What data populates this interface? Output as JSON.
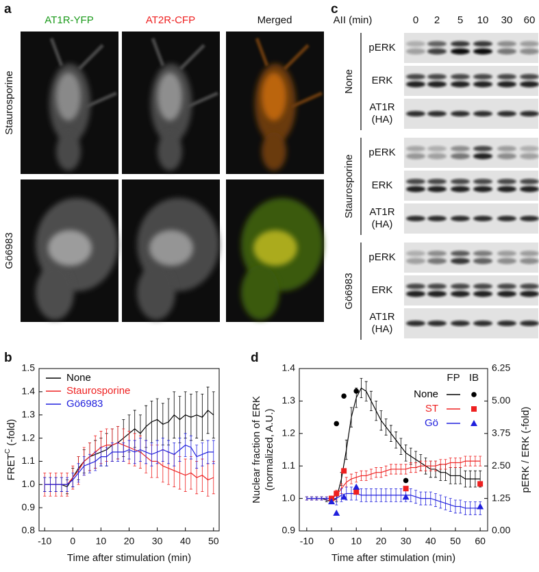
{
  "panel_labels": [
    "a",
    "b",
    "c",
    "d"
  ],
  "images": {
    "columns": [
      "AT1R-YFP",
      "AT2R-CFP",
      "Merged"
    ],
    "rows": [
      "Staurosporine",
      "Gö6983"
    ]
  },
  "blots": {
    "header": "AII (min)",
    "times": [
      0,
      2,
      5,
      10,
      30,
      60
    ],
    "groups": [
      {
        "name": "None",
        "rows": [
          [
            "pERK"
          ],
          [
            "ERK"
          ],
          [
            "AT1R",
            "(HA)"
          ]
        ]
      },
      {
        "name": "Staurosporine",
        "rows": [
          [
            "pERK"
          ],
          [
            "ERK"
          ],
          [
            "AT1R",
            "(HA)"
          ]
        ]
      },
      {
        "name": "Gö6983",
        "rows": [
          [
            "pERK"
          ],
          [
            "ERK"
          ],
          [
            "AT1R",
            "(HA)"
          ]
        ]
      }
    ]
  },
  "chart_data": [
    {
      "type": "line",
      "xlabel": "Time after stimulation (min)",
      "ylabel": {
        "text": "FRET",
        "superscript": "C",
        "suffix": " (-fold)"
      },
      "x": [
        -10,
        -8,
        -6,
        -4,
        -2,
        0,
        2,
        4,
        6,
        8,
        10,
        12,
        14,
        16,
        18,
        20,
        22,
        24,
        26,
        28,
        30,
        32,
        34,
        36,
        38,
        40,
        42,
        44,
        46,
        48,
        50
      ],
      "xlim": [
        -12,
        52
      ],
      "xticks": [
        -10,
        0,
        10,
        20,
        30,
        40,
        50
      ],
      "ylim": [
        0.8,
        1.5
      ],
      "yticks": [
        0.8,
        0.9,
        {
          "value": 1.0,
          "label": "1.0"
        },
        1.1,
        1.2,
        1.3,
        1.4,
        1.5
      ],
      "legend": "upper left",
      "series": [
        {
          "name": "None",
          "color": "#000000",
          "values": [
            1.0,
            1.0,
            1.0,
            1.0,
            0.99,
            1.03,
            1.07,
            1.1,
            1.12,
            1.13,
            1.14,
            1.15,
            1.17,
            1.18,
            1.2,
            1.22,
            1.24,
            1.22,
            1.25,
            1.27,
            1.28,
            1.26,
            1.27,
            1.3,
            1.28,
            1.3,
            1.29,
            1.3,
            1.29,
            1.32,
            1.3
          ],
          "errors": [
            0.03,
            0.03,
            0.03,
            0.03,
            0.03,
            0.04,
            0.05,
            0.05,
            0.06,
            0.06,
            0.06,
            0.07,
            0.07,
            0.07,
            0.08,
            0.08,
            0.08,
            0.08,
            0.09,
            0.09,
            0.09,
            0.09,
            0.1,
            0.1,
            0.1,
            0.1,
            0.1,
            0.1,
            0.1,
            0.1,
            0.1
          ]
        },
        {
          "name": "Staurosporine",
          "color": "#ee2020",
          "values": [
            1.0,
            1.0,
            1.0,
            1.0,
            1.0,
            1.03,
            1.06,
            1.1,
            1.12,
            1.14,
            1.16,
            1.17,
            1.17,
            1.18,
            1.17,
            1.16,
            1.15,
            1.14,
            1.12,
            1.1,
            1.1,
            1.08,
            1.07,
            1.06,
            1.05,
            1.04,
            1.05,
            1.03,
            1.04,
            1.02,
            1.03
          ],
          "errors": [
            0.05,
            0.05,
            0.05,
            0.05,
            0.05,
            0.05,
            0.06,
            0.06,
            0.06,
            0.07,
            0.07,
            0.07,
            0.07,
            0.07,
            0.07,
            0.07,
            0.07,
            0.07,
            0.07,
            0.07,
            0.07,
            0.07,
            0.07,
            0.07,
            0.07,
            0.07,
            0.07,
            0.07,
            0.07,
            0.07,
            0.07
          ]
        },
        {
          "name": "Gö6983",
          "color": "#2020dd",
          "values": [
            1.0,
            1.0,
            1.0,
            1.0,
            1.0,
            1.02,
            1.05,
            1.08,
            1.09,
            1.1,
            1.12,
            1.12,
            1.14,
            1.14,
            1.14,
            1.15,
            1.14,
            1.15,
            1.14,
            1.13,
            1.14,
            1.15,
            1.14,
            1.13,
            1.15,
            1.17,
            1.16,
            1.12,
            1.13,
            1.14,
            1.14
          ],
          "errors": [
            0.03,
            0.03,
            0.03,
            0.03,
            0.03,
            0.03,
            0.04,
            0.04,
            0.04,
            0.04,
            0.04,
            0.04,
            0.04,
            0.04,
            0.04,
            0.04,
            0.05,
            0.05,
            0.05,
            0.05,
            0.05,
            0.05,
            0.05,
            0.05,
            0.05,
            0.05,
            0.05,
            0.05,
            0.05,
            0.05,
            0.05
          ]
        }
      ]
    },
    {
      "type": "line",
      "xlabel": "Time after stimulation (min)",
      "ylabel": [
        "Nuclear fraction of ERK",
        "(normalized, A.U.)"
      ],
      "y2label": "pERK / ERK (-fold)",
      "legend": "upper right",
      "legend_headers": [
        "FP",
        "IB"
      ],
      "x": [
        -10,
        -8,
        -6,
        -4,
        -2,
        0,
        2,
        4,
        6,
        8,
        10,
        12,
        14,
        16,
        18,
        20,
        22,
        24,
        26,
        28,
        30,
        32,
        34,
        36,
        38,
        40,
        42,
        44,
        46,
        48,
        50,
        52,
        54,
        56,
        58,
        60
      ],
      "xlim": [
        -13,
        63
      ],
      "xticks": [
        -10,
        0,
        10,
        20,
        30,
        40,
        50,
        60
      ],
      "ylim": [
        0.9,
        1.4
      ],
      "yticks": [
        0.9,
        {
          "value": 1.0,
          "label": "1.0"
        },
        1.1,
        1.2,
        1.3,
        1.4
      ],
      "y2lim": [
        0,
        6.25
      ],
      "y2ticks": [
        {
          "value": 0,
          "label": "0.00"
        },
        1.25,
        {
          "value": 2.5,
          "label": "2.50"
        },
        3.75,
        {
          "value": 5,
          "label": "5.00"
        },
        6.25
      ],
      "series": [
        {
          "name": "None",
          "color": "#000000",
          "values": [
            1.0,
            1.0,
            1.0,
            1.0,
            0.995,
            0.99,
            1.0,
            1.06,
            1.15,
            1.25,
            1.31,
            1.34,
            1.33,
            1.3,
            1.27,
            1.24,
            1.22,
            1.2,
            1.18,
            1.16,
            1.14,
            1.13,
            1.12,
            1.11,
            1.1,
            1.09,
            1.09,
            1.08,
            1.08,
            1.07,
            1.07,
            1.07,
            1.06,
            1.06,
            1.06,
            1.06
          ],
          "errors": [
            0.005,
            0.005,
            0.005,
            0.005,
            0.005,
            0.005,
            0.01,
            0.02,
            0.03,
            0.03,
            0.03,
            0.03,
            0.03,
            0.03,
            0.03,
            0.03,
            0.025,
            0.025,
            0.025,
            0.025,
            0.025,
            0.025,
            0.025,
            0.025,
            0.025,
            0.025,
            0.025,
            0.025,
            0.025,
            0.025,
            0.025,
            0.025,
            0.025,
            0.025,
            0.025,
            0.025
          ]
        },
        {
          "name": "ST",
          "color": "#ee2020",
          "values": [
            1.0,
            1.0,
            1.0,
            1.0,
            1.0,
            1.0,
            1.01,
            1.03,
            1.05,
            1.06,
            1.065,
            1.07,
            1.07,
            1.075,
            1.08,
            1.08,
            1.085,
            1.09,
            1.09,
            1.09,
            1.09,
            1.095,
            1.095,
            1.1,
            1.1,
            1.1,
            1.1,
            1.105,
            1.105,
            1.11,
            1.11,
            1.11,
            1.115,
            1.115,
            1.115,
            1.115
          ],
          "errors": [
            0.005,
            0.005,
            0.005,
            0.005,
            0.005,
            0.005,
            0.015,
            0.015,
            0.015,
            0.015,
            0.015,
            0.015,
            0.015,
            0.015,
            0.015,
            0.015,
            0.015,
            0.015,
            0.015,
            0.015,
            0.015,
            0.015,
            0.015,
            0.015,
            0.015,
            0.015,
            0.015,
            0.015,
            0.015,
            0.015,
            0.015,
            0.015,
            0.015,
            0.015,
            0.015,
            0.015
          ]
        },
        {
          "name": "Gö",
          "color": "#2020dd",
          "values": [
            1.0,
            1.0,
            1.0,
            1.0,
            1.0,
            1.0,
            1.0,
            1.01,
            1.015,
            1.015,
            1.015,
            1.01,
            1.01,
            1.01,
            1.01,
            1.01,
            1.01,
            1.01,
            1.01,
            1.01,
            1.01,
            1.01,
            1.005,
            1.0,
            1.0,
            1.0,
            0.995,
            0.99,
            0.985,
            0.98,
            0.975,
            0.975,
            0.97,
            0.97,
            0.97,
            0.97
          ],
          "errors": [
            0.005,
            0.005,
            0.005,
            0.005,
            0.005,
            0.005,
            0.02,
            0.02,
            0.02,
            0.02,
            0.02,
            0.02,
            0.02,
            0.02,
            0.02,
            0.02,
            0.02,
            0.02,
            0.02,
            0.02,
            0.02,
            0.02,
            0.02,
            0.02,
            0.02,
            0.02,
            0.02,
            0.02,
            0.02,
            0.02,
            0.02,
            0.02,
            0.02,
            0.02,
            0.02,
            0.02
          ]
        },
        {
          "axis": "y2",
          "marker": "circle",
          "color": "#000000",
          "x": [
            0,
            2,
            5,
            10,
            30,
            60
          ],
          "values": [
            1.25,
            4.13,
            5.19,
            5.38,
            1.94,
            1.81
          ]
        },
        {
          "axis": "y2",
          "marker": "square",
          "color": "#ee2020",
          "x": [
            0,
            2,
            5,
            10,
            30,
            60
          ],
          "values": [
            1.25,
            1.44,
            2.31,
            1.5,
            1.63,
            1.81
          ]
        },
        {
          "axis": "y2",
          "marker": "triangle",
          "color": "#2020dd",
          "x": [
            0,
            2,
            5,
            10,
            30,
            60
          ],
          "values": [
            1.13,
            0.69,
            1.31,
            1.69,
            1.31,
            0.94
          ]
        }
      ]
    }
  ]
}
